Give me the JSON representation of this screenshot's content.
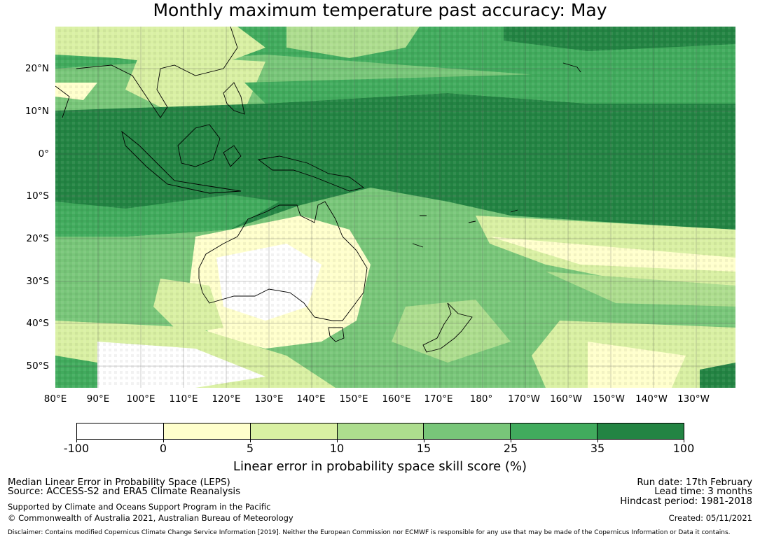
{
  "title": "Monthly maximum temperature past accuracy: May",
  "map": {
    "lon_labels": [
      "80°E",
      "90°E",
      "100°E",
      "110°E",
      "120°E",
      "130°E",
      "140°E",
      "150°E",
      "160°E",
      "170°E",
      "180°",
      "170°W",
      "160°W",
      "150°W",
      "140°W",
      "130°W"
    ],
    "lat_labels": [
      "20°N",
      "10°N",
      "0°",
      "10°S",
      "20°S",
      "30°S",
      "40°S",
      "50°S"
    ],
    "extent": {
      "lon_min": 80,
      "lon_max": 240,
      "lat_min": -55,
      "lat_max": 30
    }
  },
  "colorbar": {
    "title": "Linear error in probability space skill score (%)",
    "ticks": [
      "-100",
      "0",
      "5",
      "10",
      "15",
      "25",
      "35",
      "100"
    ],
    "colors": [
      "#ffffff",
      "#ffffcc",
      "#d9f0a3",
      "#addd8e",
      "#78c679",
      "#41ab5d",
      "#238443"
    ]
  },
  "footer": {
    "line1": "Median Linear Error in Probability Space (LEPS)",
    "line2": "Source: ACCESS-S2 and ERA5 Climate Reanalysis",
    "line3": "Supported by Climate and Oceans Support Program in the Pacific",
    "line4": "© Commonwealth of Australia 2021, Australian Bureau of Meteorology",
    "run_date": "Run date: 17th February",
    "lead_time": "Lead time: 3 months",
    "hindcast": "Hindcast period: 1981-2018",
    "created": "Created: 05/11/2021",
    "disclaimer": "Disclaimer: Contains modified Copernicus Climate Change Service Information [2019]. Neither the European Commission nor ECMWF is responsible for any use that may be made of the Copernicus Information or Data it contains."
  }
}
